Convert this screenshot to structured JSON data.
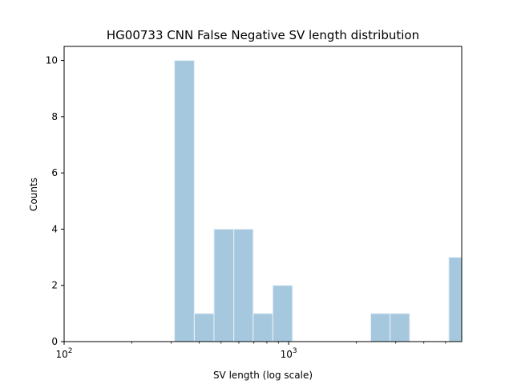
{
  "chart_data": {
    "type": "bar",
    "title": "HG00733 CNN False Negative SV length distribution",
    "xlabel": "SV length (log scale)",
    "ylabel": "Counts",
    "xscale": "log",
    "xlim": [
      100,
      5900
    ],
    "ylim": [
      0,
      10.5
    ],
    "yticks": [
      0,
      2,
      4,
      6,
      8,
      10
    ],
    "xticks": [
      {
        "value": 100,
        "base": "10",
        "exp": "2"
      },
      {
        "value": 1000,
        "base": "10",
        "exp": "3"
      }
    ],
    "grid": false,
    "bar_color": "#a6c8de",
    "bar_edge_color": "#e8f0f6",
    "bins": [
      {
        "x0": 310,
        "x1": 380,
        "count": 10
      },
      {
        "x0": 380,
        "x1": 465,
        "count": 1
      },
      {
        "x0": 465,
        "x1": 570,
        "count": 4
      },
      {
        "x0": 570,
        "x1": 695,
        "count": 4
      },
      {
        "x0": 695,
        "x1": 850,
        "count": 1
      },
      {
        "x0": 850,
        "x1": 1040,
        "count": 2
      },
      {
        "x0": 2320,
        "x1": 2830,
        "count": 1
      },
      {
        "x0": 2830,
        "x1": 3460,
        "count": 1
      },
      {
        "x0": 5170,
        "x1": 5900,
        "count": 3
      }
    ]
  }
}
